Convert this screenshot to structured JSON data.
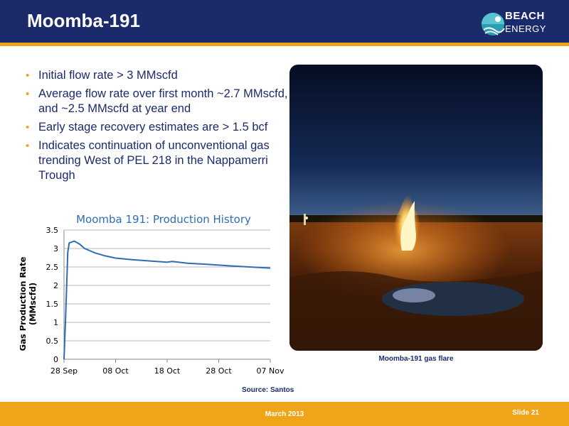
{
  "header": {
    "title": "Moomba-191",
    "logo_line1": "BEACH",
    "logo_line2": "ENERGY"
  },
  "bullets": [
    "Initial flow rate > 3 MMscfd",
    "Average flow rate over first month ~2.7 MMscfd, and ~2.5 MMscfd at year end",
    "Early stage recovery estimates are > 1.5 bcf",
    "Indicates continuation of unconventional gas trending West of PEL 218 in the Nappamerri Trough"
  ],
  "photo": {
    "caption": "Moomba-191 gas flare"
  },
  "source": "Source: Santos",
  "footer": {
    "date": "March 2013",
    "slide": "Slide 21"
  },
  "colors": {
    "navy": "#1b2a6b",
    "orange": "#f0a418",
    "series": "#2e6db4"
  },
  "chart_data": {
    "type": "line",
    "title": "Moomba 191: Production History",
    "ylabel": "Gas Production Rate (MMscfd)",
    "xlabel": "",
    "ylim": [
      0,
      3.5
    ],
    "yticks": [
      "0",
      "0.5",
      "1",
      "1.5",
      "2",
      "2.5",
      "3",
      "3.5"
    ],
    "xticks": [
      "28 Sep",
      "08 Oct",
      "18 Oct",
      "28 Oct",
      "07 Nov"
    ],
    "grid": true,
    "series": [
      {
        "values": [
          {
            "x": "2012-09-28",
            "y": 0
          },
          {
            "x": "2012-09-28",
            "y": 1.0
          },
          {
            "x": "2012-09-29",
            "y": 2.9
          },
          {
            "x": "2012-09-29",
            "y": 3.15
          },
          {
            "x": "2012-09-30",
            "y": 3.2
          },
          {
            "x": "2012-10-01",
            "y": 3.12
          },
          {
            "x": "2012-10-02",
            "y": 3.0
          },
          {
            "x": "2012-10-04",
            "y": 2.88
          },
          {
            "x": "2012-10-06",
            "y": 2.8
          },
          {
            "x": "2012-10-08",
            "y": 2.74
          },
          {
            "x": "2012-10-11",
            "y": 2.7
          },
          {
            "x": "2012-10-14",
            "y": 2.67
          },
          {
            "x": "2012-10-18",
            "y": 2.63
          },
          {
            "x": "2012-10-19",
            "y": 2.65
          },
          {
            "x": "2012-10-22",
            "y": 2.6
          },
          {
            "x": "2012-10-26",
            "y": 2.57
          },
          {
            "x": "2012-10-30",
            "y": 2.53
          },
          {
            "x": "2012-11-03",
            "y": 2.5
          },
          {
            "x": "2012-11-07",
            "y": 2.47
          }
        ]
      }
    ]
  }
}
